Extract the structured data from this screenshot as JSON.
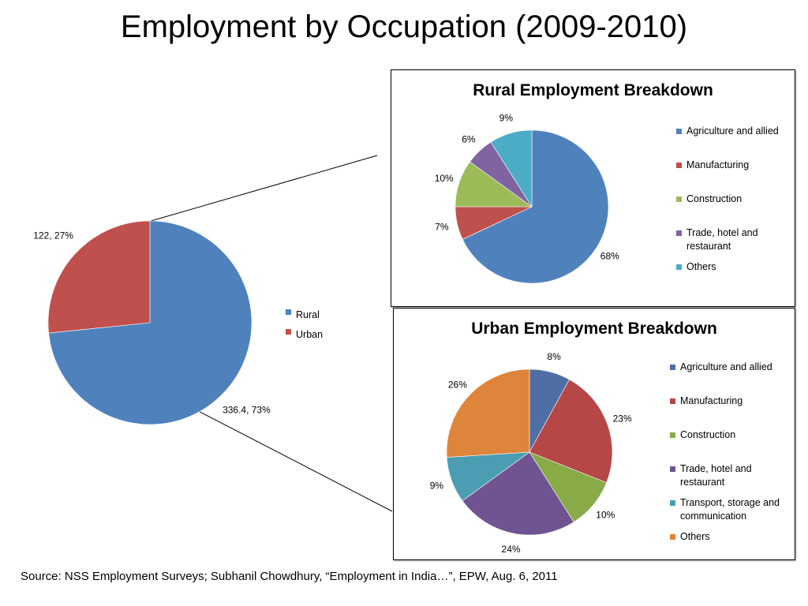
{
  "title": "Employment by Occupation (2009-2010)",
  "source_note": "Source: NSS Employment Surveys; Subhanil Chowdhury, “Employment in India…”, EPW, Aug. 6, 2011",
  "chart_data": [
    {
      "type": "pie",
      "title": "",
      "categories": [
        "Rural",
        "Urban"
      ],
      "values": [
        336.4,
        122
      ],
      "percent": [
        73,
        27
      ],
      "data_labels": [
        "336.4, 73%",
        "122, 27%"
      ],
      "colors": [
        "#4F81BD",
        "#C0504D"
      ],
      "legend_position": "right"
    },
    {
      "type": "pie",
      "title": "Rural Employment Breakdown",
      "categories": [
        "Agriculture and allied",
        "Manufacturing",
        "Construction",
        "Trade, hotel and restaurant",
        "Others"
      ],
      "values": [
        68,
        7,
        10,
        6,
        9
      ],
      "data_labels": [
        "68%",
        "7%",
        "10%",
        "6%",
        "9%"
      ],
      "colors": [
        "#4F81BD",
        "#C0504D",
        "#9BBB59",
        "#8064A2",
        "#4BACC6"
      ],
      "legend_position": "right"
    },
    {
      "type": "pie",
      "title": "Urban Employment Breakdown",
      "categories": [
        "Agriculture and allied",
        "Manufacturing",
        "Construction",
        "Trade, hotel and restaurant",
        "Transport, storage and communication",
        "Others"
      ],
      "values": [
        8,
        23,
        10,
        24,
        9,
        26
      ],
      "data_labels": [
        "8%",
        "23%",
        "10%",
        "24%",
        "9%",
        "26%"
      ],
      "colors": [
        "#4F6FA4",
        "#B64747",
        "#88AA47",
        "#6F5491",
        "#4A9DB3",
        "#DE853B"
      ],
      "legend_position": "right"
    }
  ]
}
